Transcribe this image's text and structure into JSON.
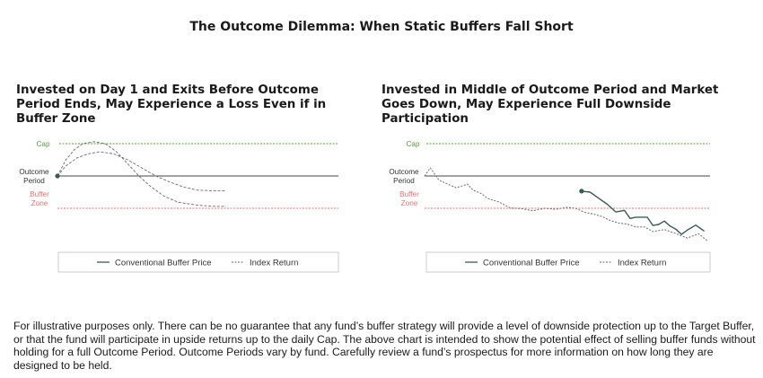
{
  "title": "The Outcome Dilemma: When Static Buffers Fall Short",
  "colors": {
    "cap": "#5b9a3c",
    "buffer": "#e57373",
    "outcome_line": "#444444",
    "buffer_price": "#3d5a56",
    "index_return": "#6a6a6a",
    "legend_border": "#bfbfbf"
  },
  "chart_data": [
    {
      "type": "line",
      "title": "Invested on Day 1 and Exits Before Outcome Period Ends, May Experience a Loss Even if in Buffer Zone",
      "level_labels": {
        "cap": "Cap",
        "outcome_period": [
          "Outcome",
          "Period"
        ],
        "buffer_zone": [
          "Buffer",
          "Zone"
        ]
      },
      "levels": {
        "cap": 16,
        "outcome_period": 0,
        "buffer_zone": -16
      },
      "ylim": [
        -22,
        22
      ],
      "xlim": [
        0,
        100
      ],
      "series": [
        {
          "name": "Conventional Buffer Price",
          "style": "dashed-long",
          "points": [
            [
              0,
              0
            ],
            [
              3,
              5
            ],
            [
              7,
              9
            ],
            [
              11,
              11
            ],
            [
              15,
              12
            ],
            [
              20,
              11
            ],
            [
              25,
              8
            ],
            [
              30,
              4
            ],
            [
              35,
              0
            ],
            [
              40,
              -3
            ],
            [
              45,
              -5.5
            ],
            [
              50,
              -7
            ],
            [
              55,
              -7.3
            ],
            [
              60,
              -7.3
            ]
          ]
        },
        {
          "name": "Index Return",
          "style": "dashed-long",
          "points": [
            [
              0,
              0
            ],
            [
              3,
              8
            ],
            [
              6,
              13
            ],
            [
              9,
              16
            ],
            [
              13,
              17
            ],
            [
              17,
              16
            ],
            [
              21,
              12
            ],
            [
              25,
              6
            ],
            [
              29,
              0
            ],
            [
              33,
              -5
            ],
            [
              38,
              -10
            ],
            [
              43,
              -13
            ],
            [
              50,
              -14.5
            ],
            [
              56,
              -15
            ],
            [
              60,
              -15
            ]
          ]
        }
      ],
      "start_marker": [
        0,
        0
      ]
    },
    {
      "type": "line",
      "title": "Invested in Middle of Outcome Period and Market Goes Down, May Experience Full Downside Participation",
      "level_labels": {
        "cap": "Cap",
        "outcome_period": [
          "Outcome",
          "Period"
        ],
        "buffer_zone": [
          "Buffer",
          "Zone"
        ]
      },
      "levels": {
        "cap": 16,
        "outcome_period": 0,
        "buffer_zone": -16
      },
      "ylim": [
        -30,
        22
      ],
      "xlim": [
        0,
        100
      ],
      "series": [
        {
          "name": "Conventional Buffer Price",
          "style": "solid",
          "points": [
            [
              55,
              -7.5
            ],
            [
              58,
              -8
            ],
            [
              61,
              -11
            ],
            [
              64,
              -14
            ],
            [
              67,
              -17.8
            ],
            [
              70,
              -17
            ],
            [
              72,
              -21
            ],
            [
              74,
              -20.4
            ],
            [
              78,
              -20.4
            ],
            [
              80,
              -24.5
            ],
            [
              82,
              -24
            ],
            [
              84,
              -22.3
            ],
            [
              86,
              -24.8
            ],
            [
              88,
              -26.3
            ],
            [
              90,
              -28.9
            ],
            [
              92,
              -26.8
            ],
            [
              95,
              -24.3
            ],
            [
              98,
              -27.3
            ]
          ]
        },
        {
          "name": "Index Return",
          "style": "dotted",
          "points": [
            [
              0,
              0
            ],
            [
              2,
              4
            ],
            [
              5,
              -2
            ],
            [
              8,
              -4
            ],
            [
              11,
              -5.8
            ],
            [
              13,
              -5
            ],
            [
              15,
              -4
            ],
            [
              17,
              -7
            ],
            [
              20,
              -8.8
            ],
            [
              22,
              -11
            ],
            [
              24,
              -12
            ],
            [
              26,
              -12.8
            ],
            [
              30,
              -15.8
            ],
            [
              34,
              -16.2
            ],
            [
              38,
              -17.2
            ],
            [
              42,
              -16
            ],
            [
              46,
              -16.5
            ],
            [
              50,
              -15.5
            ],
            [
              53,
              -16
            ],
            [
              56,
              -18
            ],
            [
              59,
              -18.8
            ],
            [
              62,
              -20
            ],
            [
              65,
              -22
            ],
            [
              68,
              -23.3
            ],
            [
              71,
              -23.8
            ],
            [
              74,
              -25.2
            ],
            [
              77,
              -25.2
            ],
            [
              80,
              -27.5
            ],
            [
              84,
              -26.5
            ],
            [
              88,
              -28.5
            ],
            [
              92,
              -30.7
            ],
            [
              96,
              -28.6
            ],
            [
              99,
              -32
            ]
          ]
        }
      ],
      "start_marker": [
        55,
        -7.5
      ]
    }
  ],
  "legend": {
    "buffer_price_label": "Conventional Buffer Price",
    "index_return_label": "Index Return"
  },
  "disclaimer": "For illustrative purposes only. There can be no guarantee that any fund’s buffer strategy will provide a level of downside protection up to the Target Buffer, or that the fund will participate in upside returns up to the daily Cap. The above chart is intended to show the potential effect of selling buffer funds without holding for a full Outcome Period. Outcome Periods vary by fund. Carefully review a fund’s prospectus for more information on how long they are designed to be held."
}
